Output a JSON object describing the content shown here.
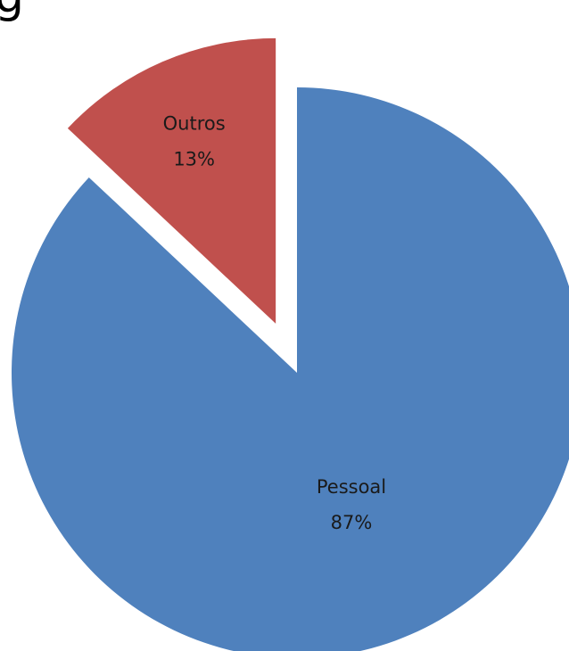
{
  "title_fragment": "g",
  "chart_data": {
    "type": "pie",
    "title": "",
    "slices": [
      {
        "label": "Outros",
        "value": 13,
        "value_label": "13%",
        "color": "#C0504D",
        "exploded": true
      },
      {
        "label": "Pessoal",
        "value": 87,
        "value_label": "87%",
        "color": "#4F81BD",
        "exploded": false
      }
    ],
    "legend": "none",
    "data_labels": "inside"
  }
}
